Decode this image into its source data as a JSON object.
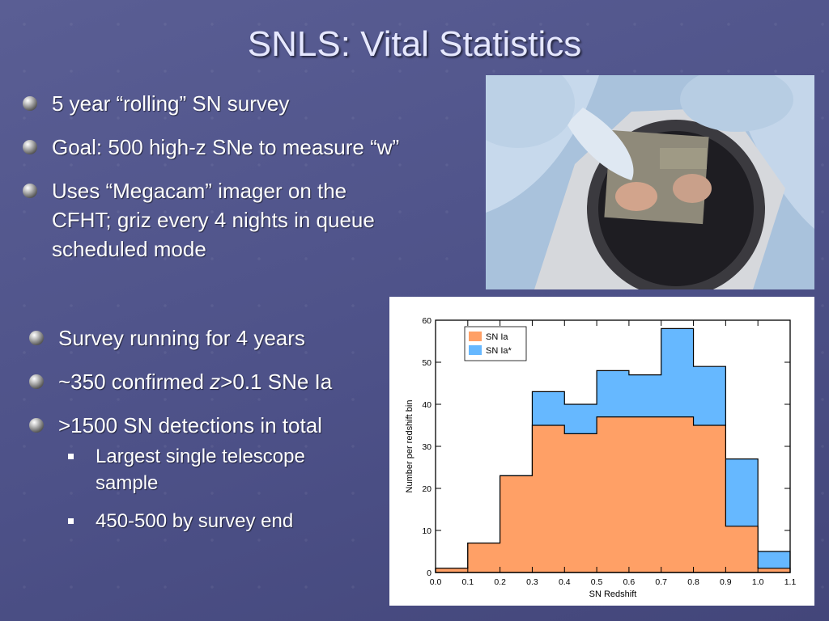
{
  "title": "SNLS: Vital Statistics",
  "top_bullets": [
    {
      "text": "5 year “rolling” SN survey"
    },
    {
      "text": "Goal: 500 high-z SNe to measure “w”"
    },
    {
      "text_lines": [
        "Uses “Megacam” imager on the",
        "CFHT; griz every 4 nights in queue",
        "scheduled mode"
      ]
    }
  ],
  "bottom_bullets": {
    "b1": "Survey running for 4 years",
    "b2_pre": "~350 confirmed ",
    "b2_italic": "z",
    "b2_post": ">0.1 SNe Ia",
    "b3": ">1500 SN detections in total",
    "sub": [
      {
        "lines": [
          "Largest single telescope",
          "sample"
        ]
      },
      {
        "lines": [
          "450-500 by survey end"
        ]
      }
    ]
  },
  "chart_data": {
    "type": "bar",
    "histogram": true,
    "bin_edges": [
      0.0,
      0.1,
      0.2,
      0.3,
      0.4,
      0.5,
      0.6,
      0.7,
      0.8,
      0.9,
      1.0,
      1.1
    ],
    "series": [
      {
        "name": "SN Ia",
        "color": "#ffa066",
        "values": [
          1,
          7,
          23,
          35,
          33,
          37,
          37,
          37,
          35,
          11,
          1
        ]
      },
      {
        "name": "SN Ia*",
        "color": "#66b8ff",
        "values": [
          1,
          7,
          23,
          43,
          40,
          48,
          47,
          58,
          49,
          27,
          5
        ]
      }
    ],
    "stacking_note": "",
    "xlabel": "SN Redshift",
    "ylabel": "Number per redshift bin",
    "xlim": [
      0.0,
      1.1
    ],
    "ylim": [
      0,
      60
    ],
    "xticks": [
      "0.0",
      "0.1",
      "0.2",
      "0.3",
      "0.4",
      "0.5",
      "0.6",
      "0.7",
      "0.8",
      "0.9",
      "1.0",
      "1.1"
    ],
    "yticks": [
      "0",
      "10",
      "20",
      "30",
      "40",
      "50",
      "60"
    ],
    "legend": "top-left"
  }
}
